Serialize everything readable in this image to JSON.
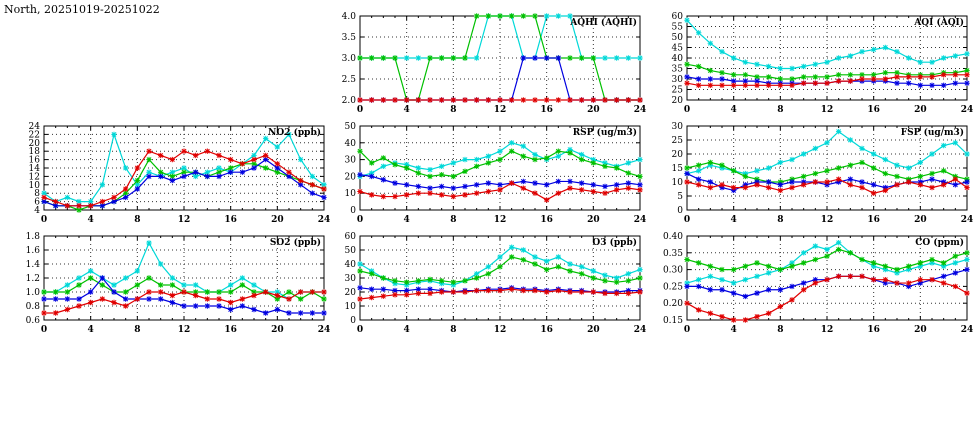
{
  "page_title": "North, 20251019-20251022",
  "colors": {
    "red": "#e00000",
    "green": "#00c000",
    "blue": "#0000e0",
    "cyan": "#00d8d8",
    "axis": "#000000",
    "grid": "#333333",
    "background": "#ffffff"
  },
  "x_axis": {
    "min": 0,
    "max": 24,
    "major_step": 4,
    "minor_step": 1,
    "labels": [
      "0",
      "4",
      "8",
      "12",
      "16",
      "20",
      "24"
    ]
  },
  "chart_data": [
    {
      "id": "aqhi",
      "type": "line",
      "title": "AQHI (AQHI)",
      "ymin": 2.0,
      "ymax": 4.0,
      "ystep": 0.5,
      "ydecimals": 1,
      "xlim": [
        0,
        24
      ],
      "grid": true,
      "legend": "none",
      "series": [
        {
          "name": "cyan-station",
          "color": "cyan",
          "values": [
            3,
            3,
            3,
            3,
            3,
            3,
            3,
            3,
            3,
            3,
            3,
            4,
            4,
            4,
            3,
            3,
            4,
            4,
            4,
            3,
            3,
            3,
            3,
            3,
            3
          ]
        },
        {
          "name": "green-station",
          "color": "green",
          "values": [
            3,
            3,
            3,
            3,
            2,
            2,
            3,
            3,
            3,
            3,
            4,
            4,
            4,
            4,
            4,
            4,
            3,
            3,
            3,
            3,
            3,
            2,
            2,
            2,
            2
          ]
        },
        {
          "name": "blue-station",
          "color": "blue",
          "values": [
            2,
            2,
            2,
            2,
            2,
            2,
            2,
            2,
            2,
            2,
            2,
            2,
            2,
            2,
            3,
            3,
            3,
            3,
            2,
            2,
            2,
            2,
            2,
            2,
            2
          ]
        },
        {
          "name": "red-station",
          "color": "red",
          "values": [
            2,
            2,
            2,
            2,
            2,
            2,
            2,
            2,
            2,
            2,
            2,
            2,
            2,
            2,
            2,
            2,
            2,
            2,
            2,
            2,
            2,
            2,
            2,
            2,
            2
          ]
        }
      ]
    },
    {
      "id": "aqi",
      "type": "line",
      "title": "AQI (AQI)",
      "ymin": 20,
      "ymax": 60,
      "ystep": 5,
      "ydecimals": 0,
      "xlim": [
        0,
        24
      ],
      "grid": true,
      "legend": "none",
      "series": [
        {
          "name": "cyan-station",
          "color": "cyan",
          "values": [
            58,
            52,
            47,
            43,
            40,
            38,
            37,
            36,
            35,
            35,
            36,
            37,
            38,
            40,
            41,
            43,
            44,
            45,
            43,
            40,
            38,
            38,
            40,
            41,
            42
          ]
        },
        {
          "name": "green-station",
          "color": "green",
          "values": [
            37,
            36,
            34,
            33,
            32,
            32,
            31,
            31,
            30,
            30,
            31,
            31,
            31,
            32,
            32,
            32,
            32,
            33,
            33,
            32,
            32,
            32,
            33,
            33,
            34
          ]
        },
        {
          "name": "blue-station",
          "color": "blue",
          "values": [
            31,
            30,
            30,
            30,
            29,
            29,
            29,
            28,
            28,
            28,
            28,
            28,
            28,
            29,
            29,
            29,
            29,
            29,
            28,
            28,
            27,
            27,
            27,
            28,
            28
          ]
        },
        {
          "name": "red-station",
          "color": "red",
          "values": [
            28,
            27,
            27,
            27,
            27,
            27,
            27,
            27,
            27,
            27,
            28,
            28,
            28,
            29,
            29,
            30,
            30,
            30,
            31,
            31,
            31,
            31,
            32,
            32,
            32
          ]
        }
      ]
    },
    {
      "id": "no2",
      "type": "line",
      "title": "NO2 (ppb)",
      "ymin": 4,
      "ymax": 24,
      "ystep": 2,
      "ydecimals": 0,
      "xlim": [
        0,
        24
      ],
      "grid": true,
      "legend": "none",
      "series": [
        {
          "name": "cyan-station",
          "color": "cyan",
          "values": [
            8,
            6,
            7,
            6,
            6,
            10,
            22,
            14,
            10,
            13,
            12,
            13,
            14,
            12,
            13,
            14,
            13,
            15,
            17,
            21,
            19,
            22,
            16,
            12,
            10
          ]
        },
        {
          "name": "green-station",
          "color": "green",
          "values": [
            6,
            5,
            5,
            4,
            5,
            5,
            6,
            8,
            11,
            16,
            13,
            12,
            13,
            13,
            12,
            13,
            14,
            15,
            15,
            14,
            13,
            12,
            11,
            10,
            9
          ]
        },
        {
          "name": "blue-station",
          "color": "blue",
          "values": [
            6,
            5,
            5,
            5,
            5,
            5,
            6,
            7,
            9,
            12,
            12,
            11,
            12,
            13,
            12,
            12,
            13,
            13,
            14,
            16,
            14,
            12,
            10,
            8,
            7
          ]
        },
        {
          "name": "red-station",
          "color": "red",
          "values": [
            7,
            6,
            5,
            5,
            5,
            6,
            7,
            9,
            14,
            18,
            17,
            16,
            18,
            17,
            18,
            17,
            16,
            15,
            16,
            17,
            15,
            13,
            11,
            10,
            9
          ]
        }
      ]
    },
    {
      "id": "rsp",
      "type": "line",
      "title": "RSP (ug/m3)",
      "ymin": 0,
      "ymax": 50,
      "ystep": 10,
      "ydecimals": 0,
      "xlim": [
        0,
        24
      ],
      "grid": true,
      "legend": "none",
      "series": [
        {
          "name": "cyan-station",
          "color": "cyan",
          "values": [
            20,
            22,
            26,
            28,
            27,
            25,
            24,
            26,
            28,
            30,
            30,
            32,
            35,
            40,
            38,
            33,
            30,
            32,
            36,
            33,
            30,
            28,
            26,
            28,
            30
          ]
        },
        {
          "name": "green-station",
          "color": "green",
          "values": [
            35,
            28,
            31,
            27,
            25,
            22,
            20,
            21,
            20,
            23,
            26,
            28,
            30,
            35,
            32,
            30,
            31,
            35,
            34,
            30,
            28,
            26,
            25,
            22,
            20
          ]
        },
        {
          "name": "blue-station",
          "color": "blue",
          "values": [
            21,
            20,
            18,
            16,
            15,
            14,
            13,
            14,
            13,
            14,
            15,
            16,
            15,
            16,
            17,
            16,
            15,
            17,
            17,
            16,
            15,
            14,
            15,
            16,
            15
          ]
        },
        {
          "name": "red-station",
          "color": "red",
          "values": [
            11,
            9,
            8,
            8,
            9,
            10,
            10,
            9,
            8,
            9,
            10,
            11,
            12,
            16,
            13,
            10,
            6,
            10,
            13,
            12,
            11,
            10,
            12,
            13,
            12
          ]
        }
      ]
    },
    {
      "id": "fsp",
      "type": "line",
      "title": "FSP (ug/m3)",
      "ymin": 0,
      "ymax": 30,
      "ystep": 5,
      "ydecimals": 0,
      "xlim": [
        0,
        24
      ],
      "grid": true,
      "legend": "none",
      "series": [
        {
          "name": "cyan-station",
          "color": "cyan",
          "values": [
            13,
            14,
            16,
            15,
            14,
            13,
            14,
            15,
            17,
            18,
            20,
            22,
            24,
            28,
            25,
            22,
            20,
            18,
            16,
            15,
            17,
            20,
            23,
            24,
            20
          ]
        },
        {
          "name": "green-station",
          "color": "green",
          "values": [
            15,
            16,
            17,
            16,
            14,
            12,
            11,
            10,
            10,
            11,
            12,
            13,
            14,
            15,
            16,
            17,
            15,
            13,
            12,
            11,
            12,
            13,
            14,
            12,
            11
          ]
        },
        {
          "name": "blue-station",
          "color": "blue",
          "values": [
            13,
            11,
            10,
            8,
            7,
            9,
            10,
            10,
            9,
            10,
            10,
            10,
            9,
            10,
            11,
            10,
            9,
            8,
            9,
            10,
            10,
            11,
            10,
            9,
            10
          ]
        },
        {
          "name": "red-station",
          "color": "red",
          "values": [
            10,
            9,
            8,
            9,
            8,
            8,
            9,
            8,
            7,
            8,
            9,
            10,
            10,
            11,
            9,
            8,
            6,
            7,
            9,
            10,
            9,
            8,
            9,
            11,
            8
          ]
        }
      ]
    },
    {
      "id": "so2",
      "type": "line",
      "title": "SO2 (ppb)",
      "ymin": 0.6,
      "ymax": 1.8,
      "ystep": 0.2,
      "ydecimals": 1,
      "xlim": [
        0,
        24
      ],
      "grid": true,
      "legend": "none",
      "series": [
        {
          "name": "cyan-station",
          "color": "cyan",
          "values": [
            1.0,
            1.0,
            1.1,
            1.2,
            1.3,
            1.2,
            1.1,
            1.2,
            1.3,
            1.7,
            1.4,
            1.2,
            1.1,
            1.1,
            1.0,
            1.0,
            1.1,
            1.2,
            1.1,
            1.0,
            1.0,
            0.9,
            1.0,
            1.0,
            1.0
          ]
        },
        {
          "name": "green-station",
          "color": "green",
          "values": [
            1.0,
            1.0,
            1.0,
            1.1,
            1.2,
            1.1,
            1.0,
            1.0,
            1.1,
            1.2,
            1.1,
            1.1,
            1.0,
            1.0,
            1.0,
            1.0,
            1.0,
            1.1,
            1.0,
            1.0,
            0.9,
            1.0,
            0.9,
            1.0,
            0.9
          ]
        },
        {
          "name": "blue-station",
          "color": "blue",
          "values": [
            0.9,
            0.9,
            0.9,
            0.9,
            1.0,
            1.2,
            1.0,
            0.9,
            0.9,
            0.9,
            0.9,
            0.85,
            0.8,
            0.8,
            0.8,
            0.8,
            0.75,
            0.8,
            0.75,
            0.7,
            0.75,
            0.7,
            0.7,
            0.7,
            0.7
          ]
        },
        {
          "name": "red-station",
          "color": "red",
          "values": [
            0.7,
            0.7,
            0.75,
            0.8,
            0.85,
            0.9,
            0.85,
            0.8,
            0.9,
            1.0,
            1.0,
            0.95,
            1.0,
            0.95,
            0.9,
            0.9,
            0.85,
            0.9,
            0.95,
            1.0,
            0.95,
            0.9,
            1.0,
            1.0,
            1.0
          ]
        }
      ]
    },
    {
      "id": "o3",
      "type": "line",
      "title": "O3 (ppb)",
      "ymin": 0,
      "ymax": 60,
      "ystep": 10,
      "ydecimals": 0,
      "xlim": [
        0,
        24
      ],
      "grid": true,
      "legend": "none",
      "series": [
        {
          "name": "cyan-station",
          "color": "cyan",
          "values": [
            40,
            35,
            30,
            26,
            25,
            27,
            28,
            26,
            25,
            28,
            33,
            38,
            45,
            52,
            50,
            45,
            42,
            45,
            40,
            38,
            35,
            32,
            30,
            33,
            36
          ]
        },
        {
          "name": "green-station",
          "color": "green",
          "values": [
            35,
            33,
            30,
            28,
            27,
            28,
            29,
            28,
            27,
            28,
            30,
            33,
            38,
            45,
            43,
            40,
            36,
            38,
            35,
            33,
            30,
            28,
            27,
            28,
            30
          ]
        },
        {
          "name": "blue-station",
          "color": "blue",
          "values": [
            23,
            22,
            22,
            21,
            21,
            22,
            22,
            21,
            20,
            21,
            21,
            22,
            22,
            23,
            22,
            22,
            21,
            22,
            21,
            21,
            20,
            20,
            20,
            21,
            21
          ]
        },
        {
          "name": "red-station",
          "color": "red",
          "values": [
            15,
            16,
            17,
            18,
            18,
            19,
            19,
            20,
            20,
            20,
            21,
            21,
            21,
            22,
            21,
            21,
            20,
            21,
            20,
            20,
            20,
            19,
            19,
            19,
            20
          ]
        }
      ]
    },
    {
      "id": "co",
      "type": "line",
      "title": "CO (ppm)",
      "ymin": 0.15,
      "ymax": 0.4,
      "ystep": 0.05,
      "ydecimals": 2,
      "xlim": [
        0,
        24
      ],
      "grid": true,
      "legend": "none",
      "series": [
        {
          "name": "cyan-station",
          "color": "cyan",
          "values": [
            0.26,
            0.27,
            0.28,
            0.27,
            0.26,
            0.27,
            0.28,
            0.29,
            0.3,
            0.32,
            0.35,
            0.37,
            0.36,
            0.38,
            0.35,
            0.33,
            0.31,
            0.3,
            0.29,
            0.3,
            0.31,
            0.32,
            0.31,
            0.32,
            0.33
          ]
        },
        {
          "name": "green-station",
          "color": "green",
          "values": [
            0.33,
            0.32,
            0.31,
            0.3,
            0.3,
            0.31,
            0.32,
            0.31,
            0.3,
            0.31,
            0.32,
            0.33,
            0.34,
            0.36,
            0.35,
            0.33,
            0.32,
            0.31,
            0.3,
            0.31,
            0.32,
            0.33,
            0.32,
            0.34,
            0.35
          ]
        },
        {
          "name": "blue-station",
          "color": "blue",
          "values": [
            0.25,
            0.25,
            0.24,
            0.24,
            0.23,
            0.22,
            0.23,
            0.24,
            0.24,
            0.25,
            0.26,
            0.27,
            0.27,
            0.28,
            0.28,
            0.28,
            0.27,
            0.26,
            0.26,
            0.25,
            0.26,
            0.27,
            0.28,
            0.29,
            0.3
          ]
        },
        {
          "name": "red-station",
          "color": "red",
          "values": [
            0.2,
            0.18,
            0.17,
            0.16,
            0.15,
            0.15,
            0.16,
            0.17,
            0.19,
            0.21,
            0.24,
            0.26,
            0.27,
            0.28,
            0.28,
            0.28,
            0.27,
            0.27,
            0.26,
            0.26,
            0.27,
            0.27,
            0.26,
            0.25,
            0.23
          ]
        }
      ]
    }
  ]
}
